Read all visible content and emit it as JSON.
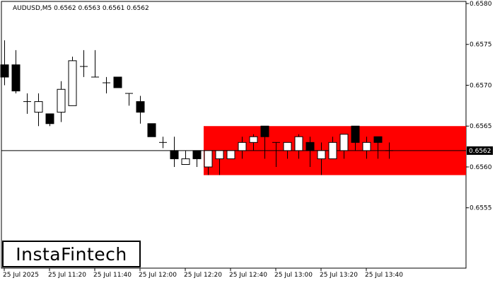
{
  "header": {
    "symbol_line": "AUDUSD,M5  0.6562 0.6563 0.6561 0.6562"
  },
  "logo": {
    "text": "InstaFintech"
  },
  "colors": {
    "zone_fill": "#ff0000",
    "bull_body": "#ffffff",
    "bear_body": "#000000",
    "price_label_bg": "#000000",
    "price_label_text": "#ffffff"
  },
  "chart_data": {
    "type": "candlestick",
    "symbol": "AUDUSD",
    "timeframe": "M5",
    "ohlc_header": {
      "open": 0.6562,
      "high": 0.6563,
      "low": 0.6561,
      "close": 0.6562
    },
    "current_price": 0.6562,
    "current_price_label": "0.6562",
    "ylim": [
      0.6549,
      0.658
    ],
    "y_ticks": [
      {
        "value": 0.658,
        "label": "0.6580"
      },
      {
        "value": 0.6575,
        "label": "0.6575"
      },
      {
        "value": 0.657,
        "label": "0.6570"
      },
      {
        "value": 0.6565,
        "label": "0.6565"
      },
      {
        "value": 0.656,
        "label": "0.6560"
      },
      {
        "value": 0.6555,
        "label": "0.6555"
      }
    ],
    "x_ticks": [
      {
        "index": 0,
        "label": "25 Jul 2025"
      },
      {
        "index": 4,
        "label": "25 Jul 11:20"
      },
      {
        "index": 8,
        "label": "25 Jul 11:40"
      },
      {
        "index": 12,
        "label": "25 Jul 12:00"
      },
      {
        "index": 16,
        "label": "25 Jul 12:20"
      },
      {
        "index": 20,
        "label": "25 Jul 12:40"
      },
      {
        "index": 24,
        "label": "25 Jul 13:00"
      },
      {
        "index": 28,
        "label": "25 Jul 13:20"
      },
      {
        "index": 32,
        "label": "25 Jul 13:40"
      }
    ],
    "zone": {
      "from_index": 18,
      "low": 0.6559,
      "high": 0.6565
    },
    "candles": [
      {
        "o": 0.65725,
        "h": 0.65755,
        "l": 0.657,
        "c": 0.6571
      },
      {
        "o": 0.65725,
        "h": 0.65743,
        "l": 0.6569,
        "c": 0.65693
      },
      {
        "o": 0.6568,
        "h": 0.6569,
        "l": 0.65665,
        "c": 0.6568
      },
      {
        "o": 0.65667,
        "h": 0.6569,
        "l": 0.6565,
        "c": 0.6568
      },
      {
        "o": 0.65665,
        "h": 0.65665,
        "l": 0.6565,
        "c": 0.65653
      },
      {
        "o": 0.65667,
        "h": 0.65705,
        "l": 0.65655,
        "c": 0.65695
      },
      {
        "o": 0.65675,
        "h": 0.65735,
        "l": 0.65675,
        "c": 0.6573
      },
      {
        "o": 0.65723,
        "h": 0.65743,
        "l": 0.6571,
        "c": 0.65723
      },
      {
        "o": 0.6571,
        "h": 0.65743,
        "l": 0.6571,
        "c": 0.6571
      },
      {
        "o": 0.65703,
        "h": 0.6571,
        "l": 0.6569,
        "c": 0.65703
      },
      {
        "o": 0.6571,
        "h": 0.6571,
        "l": 0.65697,
        "c": 0.65697
      },
      {
        "o": 0.6569,
        "h": 0.6569,
        "l": 0.65675,
        "c": 0.6569
      },
      {
        "o": 0.6568,
        "h": 0.65687,
        "l": 0.65653,
        "c": 0.65667
      },
      {
        "o": 0.65653,
        "h": 0.65653,
        "l": 0.65637,
        "c": 0.65637
      },
      {
        "o": 0.6563,
        "h": 0.65637,
        "l": 0.65623,
        "c": 0.6563
      },
      {
        "o": 0.6562,
        "h": 0.65637,
        "l": 0.656,
        "c": 0.6561
      },
      {
        "o": 0.65603,
        "h": 0.6562,
        "l": 0.65603,
        "c": 0.6561
      },
      {
        "o": 0.6562,
        "h": 0.6562,
        "l": 0.656,
        "c": 0.6561
      },
      {
        "o": 0.656,
        "h": 0.6562,
        "l": 0.6559,
        "c": 0.6562
      },
      {
        "o": 0.6561,
        "h": 0.6562,
        "l": 0.6559,
        "c": 0.6562
      },
      {
        "o": 0.6561,
        "h": 0.6562,
        "l": 0.6561,
        "c": 0.6562
      },
      {
        "o": 0.6562,
        "h": 0.65637,
        "l": 0.6561,
        "c": 0.6563
      },
      {
        "o": 0.6563,
        "h": 0.6564,
        "l": 0.6562,
        "c": 0.65637
      },
      {
        "o": 0.6565,
        "h": 0.6565,
        "l": 0.6561,
        "c": 0.65637
      },
      {
        "o": 0.6563,
        "h": 0.6563,
        "l": 0.656,
        "c": 0.6563
      },
      {
        "o": 0.6562,
        "h": 0.6563,
        "l": 0.6561,
        "c": 0.6563
      },
      {
        "o": 0.6562,
        "h": 0.6564,
        "l": 0.6561,
        "c": 0.65637
      },
      {
        "o": 0.6563,
        "h": 0.65637,
        "l": 0.656,
        "c": 0.6562
      },
      {
        "o": 0.6561,
        "h": 0.6563,
        "l": 0.6559,
        "c": 0.6562
      },
      {
        "o": 0.6561,
        "h": 0.65637,
        "l": 0.6561,
        "c": 0.6563
      },
      {
        "o": 0.6562,
        "h": 0.6564,
        "l": 0.6561,
        "c": 0.6564
      },
      {
        "o": 0.6565,
        "h": 0.6565,
        "l": 0.6562,
        "c": 0.6563
      },
      {
        "o": 0.6562,
        "h": 0.65637,
        "l": 0.6561,
        "c": 0.6563
      },
      {
        "o": 0.65637,
        "h": 0.65637,
        "l": 0.6561,
        "c": 0.6563
      },
      {
        "o": 0.6562,
        "h": 0.6563,
        "l": 0.6561,
        "c": 0.6562
      }
    ]
  }
}
